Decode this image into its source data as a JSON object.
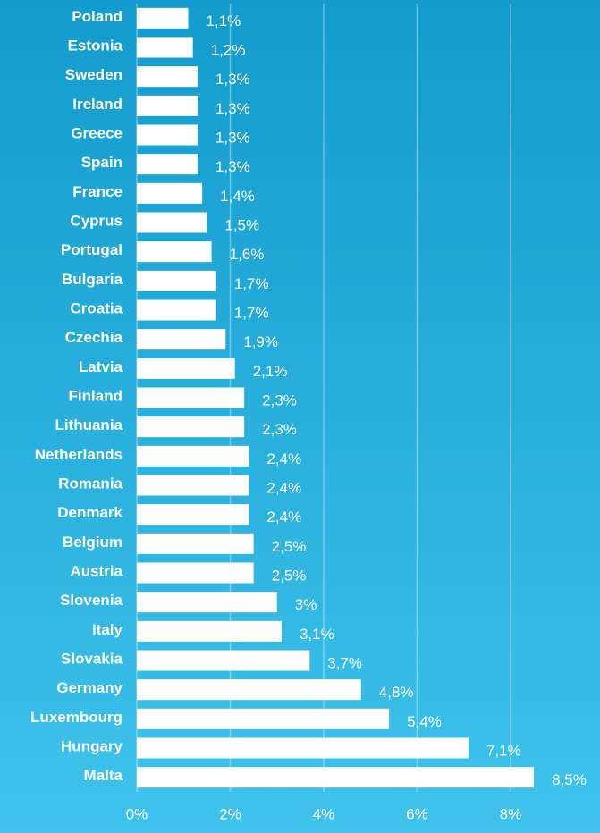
{
  "chart_data": {
    "type": "bar",
    "orientation": "horizontal",
    "categories": [
      "Poland",
      "Estonia",
      "Sweden",
      "Ireland",
      "Greece",
      "Spain",
      "France",
      "Cyprus",
      "Portugal",
      "Bulgaria",
      "Croatia",
      "Czechia",
      "Latvia",
      "Finland",
      "Lithuania",
      "Netherlands",
      "Romania",
      "Denmark",
      "Belgium",
      "Austria",
      "Slovenia",
      "Italy",
      "Slovakia",
      "Germany",
      "Luxembourg",
      "Hungary",
      "Malta"
    ],
    "values": [
      1.1,
      1.2,
      1.3,
      1.3,
      1.3,
      1.3,
      1.4,
      1.5,
      1.6,
      1.7,
      1.7,
      1.9,
      2.1,
      2.3,
      2.3,
      2.4,
      2.4,
      2.4,
      2.5,
      2.5,
      3,
      3.1,
      3.7,
      4.8,
      5.4,
      7.1,
      8.5
    ],
    "value_labels": [
      "1,1%",
      "1,2%",
      "1,3%",
      "1,3%",
      "1,3%",
      "1,3%",
      "1,4%",
      "1,5%",
      "1,6%",
      "1,7%",
      "1,7%",
      "1,9%",
      "2,1%",
      "2,3%",
      "2,3%",
      "2,4%",
      "2,4%",
      "2,4%",
      "2,5%",
      "2,5%",
      "3%",
      "3,1%",
      "3,7%",
      "4,8%",
      "5,4%",
      "7,1%",
      "8,5%"
    ],
    "color": "#ffffff",
    "xlim": [
      0,
      9.8
    ],
    "xticks": [
      {
        "value": 0,
        "label": "0%"
      },
      {
        "value": 2,
        "label": "2%"
      },
      {
        "value": 4,
        "label": "4%"
      },
      {
        "value": 6,
        "label": "6%"
      },
      {
        "value": 8,
        "label": "8%"
      }
    ],
    "grid": true
  }
}
